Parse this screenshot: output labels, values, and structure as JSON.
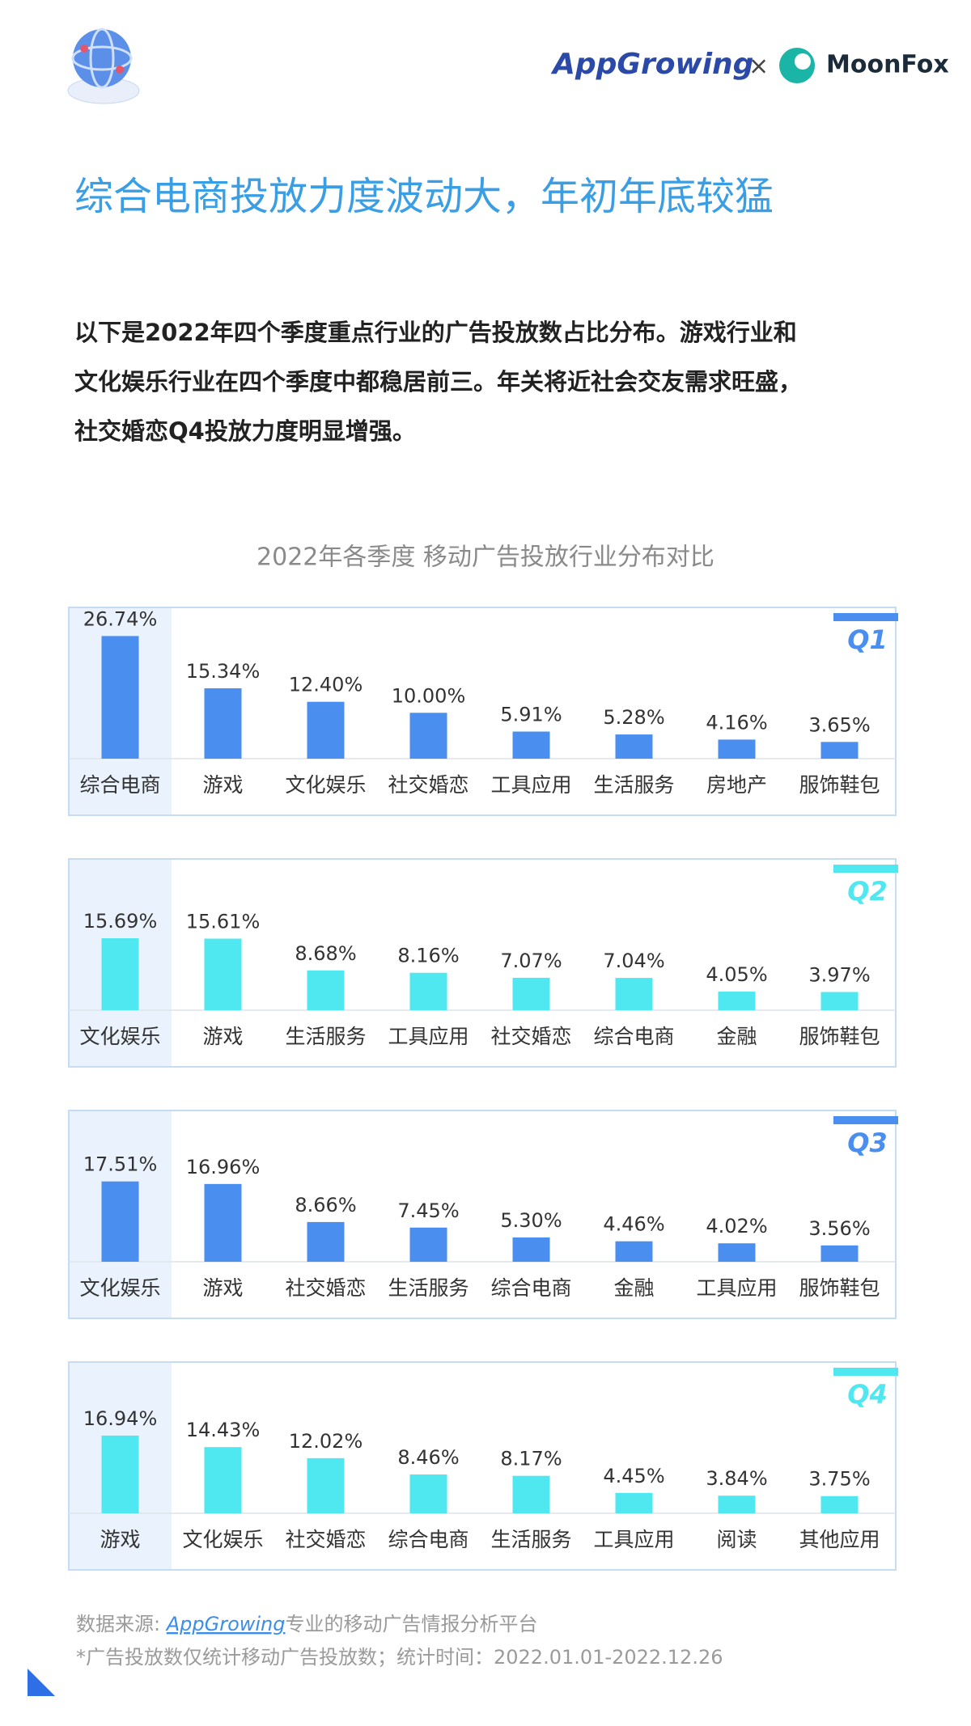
{
  "header": {
    "brand_left": "AppGrowing",
    "separator": "×",
    "brand_right": "MoonFox"
  },
  "title": "综合电商投放力度波动大，年初年底较猛",
  "paragraph": [
    "以下是2022年四个季度重点行业的广告投放数占比分布。游戏行业和",
    "文化娱乐行业在四个季度中都稳居前三。年关将近社会交友需求旺盛，",
    "社交婚恋Q4投放力度明显增强。"
  ],
  "charts_title": "2022年各季度 移动广告投放行业分布对比",
  "chart_data": [
    {
      "type": "bar",
      "title": "Q1",
      "color": "#4a8ff0",
      "categories": [
        "综合电商",
        "游戏",
        "文化娱乐",
        "社交婚恋",
        "工具应用",
        "生活服务",
        "房地产",
        "服饰鞋包"
      ],
      "values": [
        26.74,
        15.34,
        12.4,
        10.0,
        5.91,
        5.28,
        4.16,
        3.65
      ],
      "value_labels": [
        "26.74%",
        "15.34%",
        "12.40%",
        "10.00%",
        "5.91%",
        "5.28%",
        "4.16%",
        "3.65%"
      ]
    },
    {
      "type": "bar",
      "title": "Q2",
      "color": "#4fe8f0",
      "categories": [
        "文化娱乐",
        "游戏",
        "生活服务",
        "工具应用",
        "社交婚恋",
        "综合电商",
        "金融",
        "服饰鞋包"
      ],
      "values": [
        15.69,
        15.61,
        8.68,
        8.16,
        7.07,
        7.04,
        4.05,
        3.97
      ],
      "value_labels": [
        "15.69%",
        "15.61%",
        "8.68%",
        "8.16%",
        "7.07%",
        "7.04%",
        "4.05%",
        "3.97%"
      ]
    },
    {
      "type": "bar",
      "title": "Q3",
      "color": "#4a8ff0",
      "categories": [
        "文化娱乐",
        "游戏",
        "社交婚恋",
        "生活服务",
        "综合电商",
        "金融",
        "工具应用",
        "服饰鞋包"
      ],
      "values": [
        17.51,
        16.96,
        8.66,
        7.45,
        5.3,
        4.46,
        4.02,
        3.56
      ],
      "value_labels": [
        "17.51%",
        "16.96%",
        "8.66%",
        "7.45%",
        "5.30%",
        "4.46%",
        "4.02%",
        "3.56%"
      ]
    },
    {
      "type": "bar",
      "title": "Q4",
      "color": "#4fe8f0",
      "categories": [
        "游戏",
        "文化娱乐",
        "社交婚恋",
        "综合电商",
        "生活服务",
        "工具应用",
        "阅读",
        "其他应用"
      ],
      "values": [
        16.94,
        14.43,
        12.02,
        8.46,
        8.17,
        4.45,
        3.84,
        3.75
      ],
      "value_labels": [
        "16.94%",
        "14.43%",
        "12.02%",
        "8.46%",
        "8.17%",
        "4.45%",
        "3.84%",
        "3.75%"
      ]
    }
  ],
  "footer": {
    "source_prefix": "数据来源: ",
    "source_link": "AppGrowing",
    "source_suffix": "专业的移动广告情报分析平台",
    "note": "*广告投放数仅统计移动广告投放数；统计时间：2022.01.01-2022.12.26"
  }
}
